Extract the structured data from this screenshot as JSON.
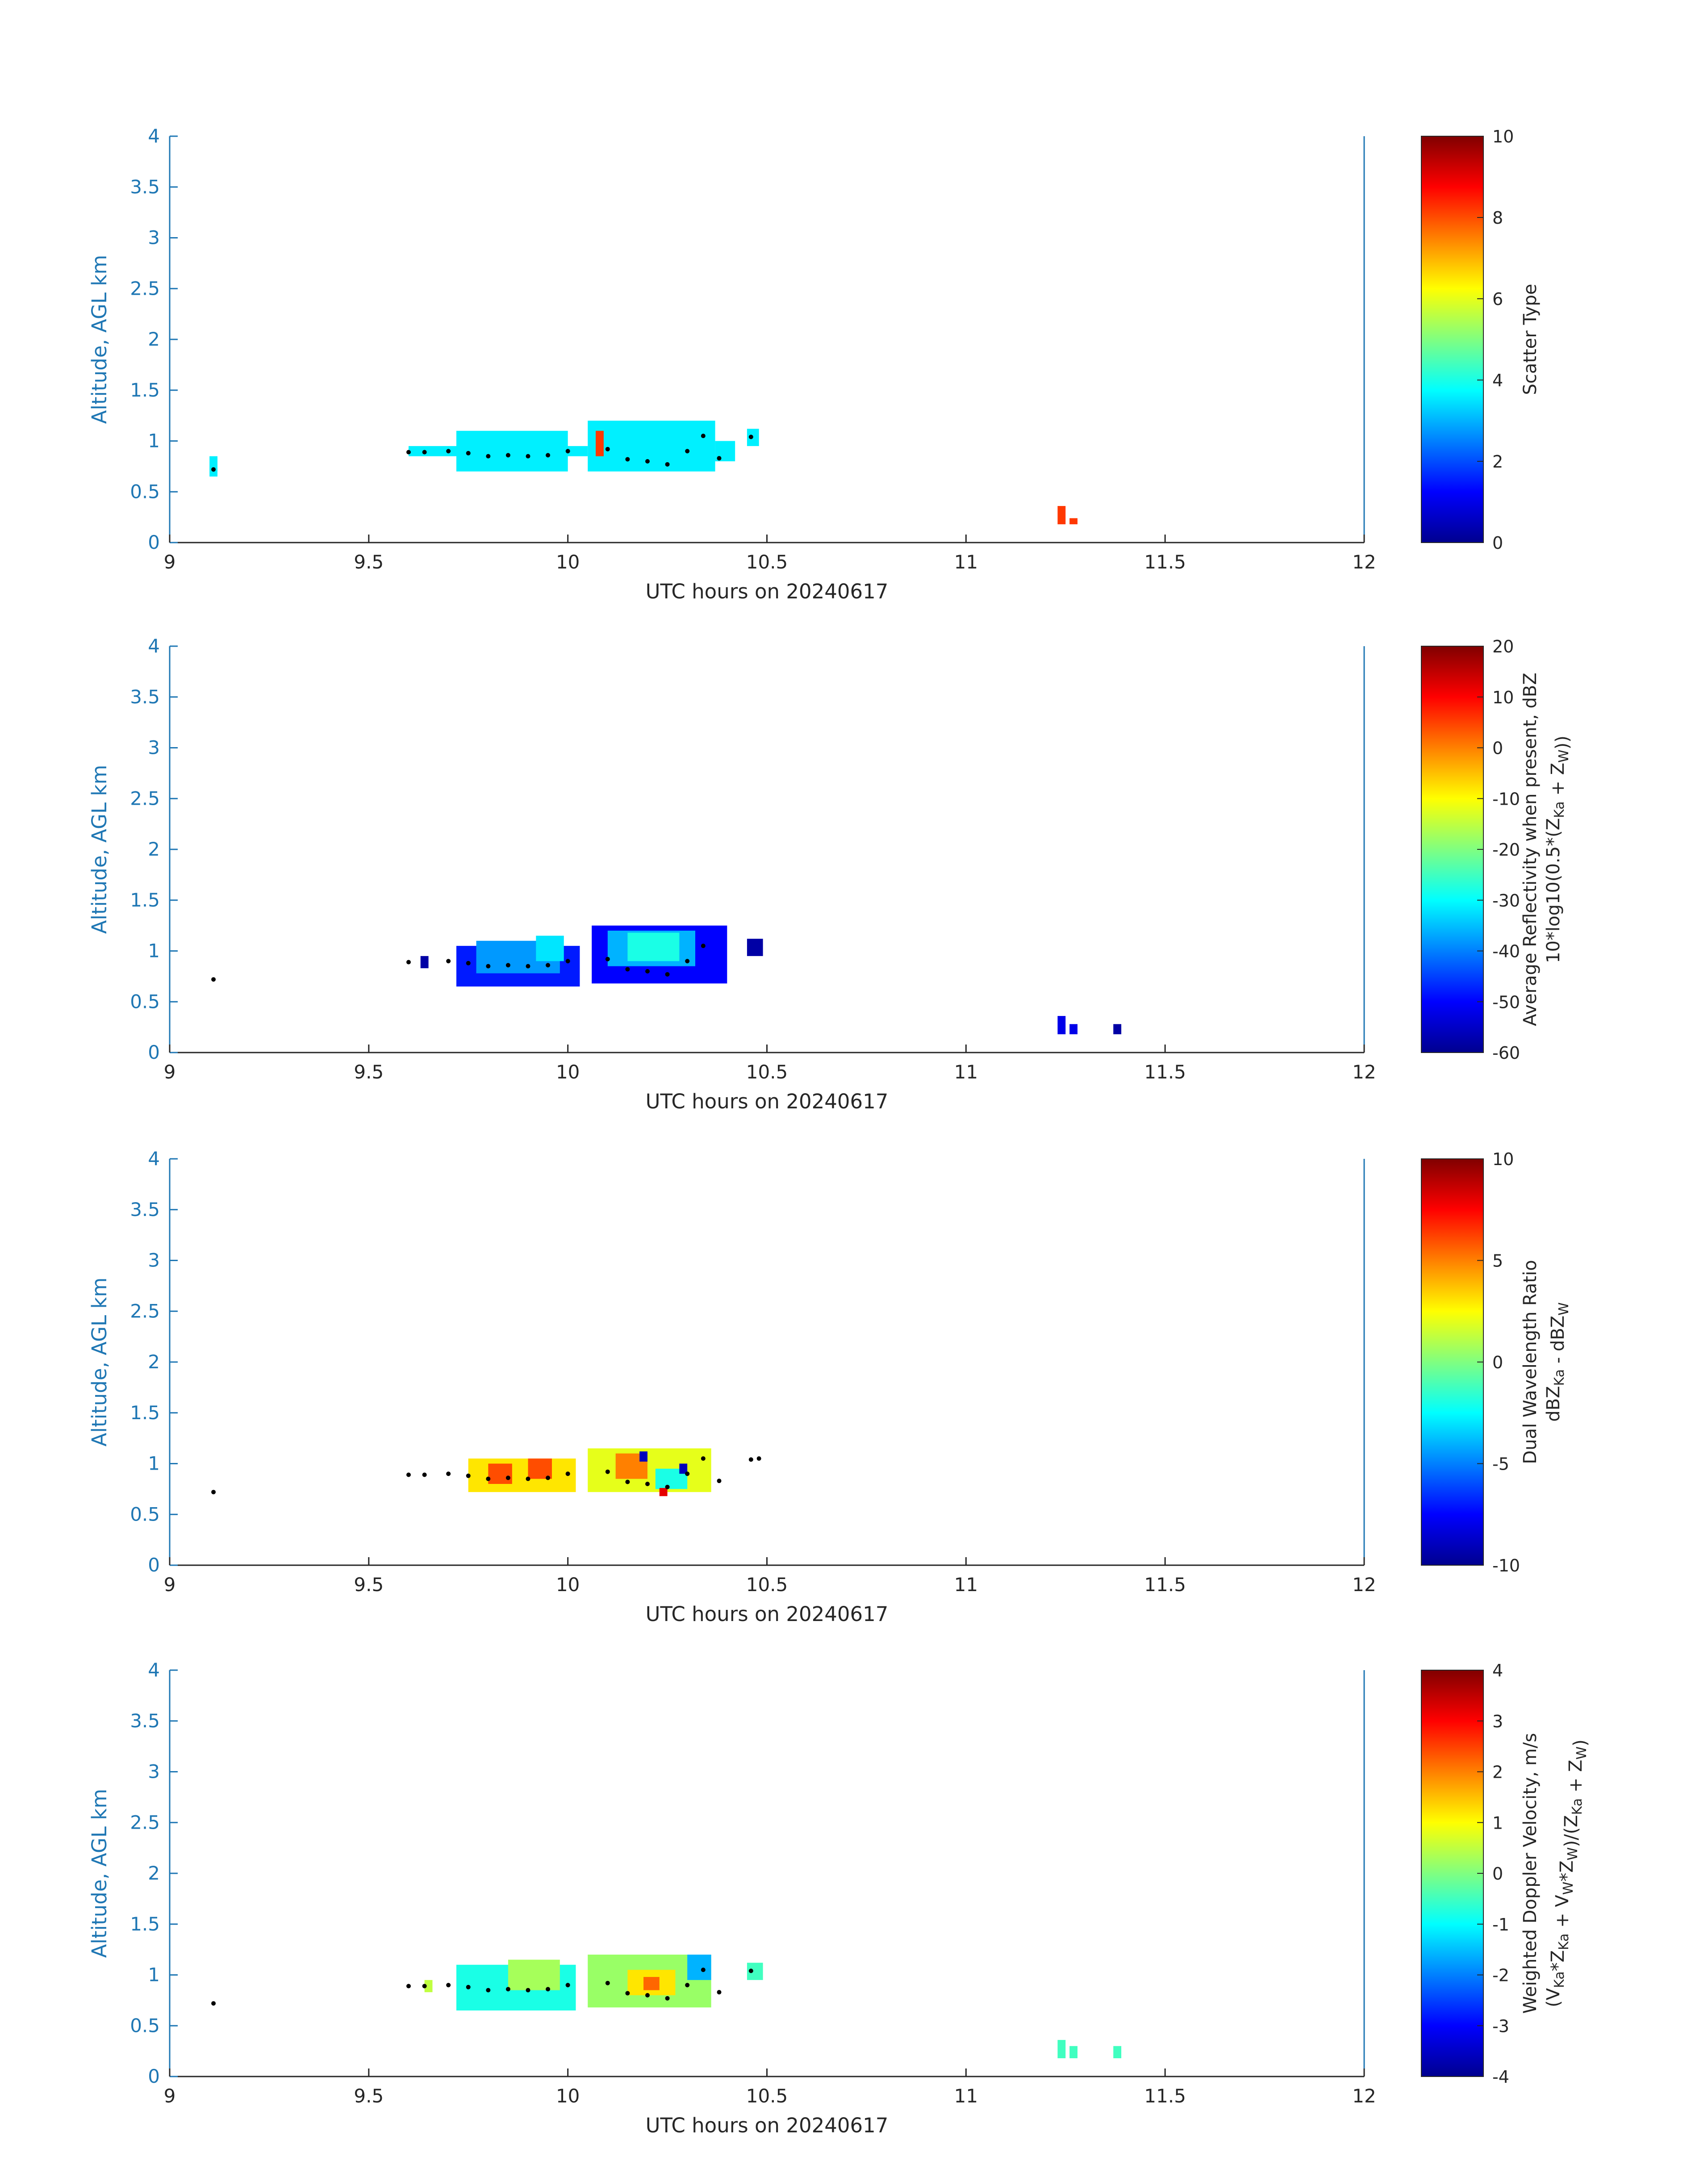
{
  "figure": {
    "jet_colormap": [
      "#00008f",
      "#0000ff",
      "#0080ff",
      "#00ffff",
      "#80ff80",
      "#ffff00",
      "#ff8000",
      "#ff0000",
      "#800000"
    ]
  },
  "chart_data": [
    {
      "type": "heatmap",
      "xlabel": "UTC hours on 20240617",
      "ylabel": "Altitude, AGL km",
      "xlim": [
        9,
        12
      ],
      "ylim": [
        0,
        4
      ],
      "xticks": [
        "9",
        "9.5",
        "10",
        "10.5",
        "11",
        "11.5",
        "12"
      ],
      "yticks": [
        "0",
        "0.5",
        "1",
        "1.5",
        "2",
        "2.5",
        "3",
        "3.5",
        "4"
      ],
      "colorbar": {
        "label_lines": [
          "Scatter Type"
        ],
        "clim": [
          0,
          10
        ],
        "ticks": [
          "0",
          "2",
          "4",
          "6",
          "8",
          "10"
        ]
      },
      "cells": [
        {
          "x0": 9.1,
          "x1": 9.12,
          "y0": 0.65,
          "y1": 0.85,
          "v": 3.6
        },
        {
          "x0": 9.6,
          "x1": 10.05,
          "y0": 0.85,
          "y1": 0.95,
          "v": 3.6
        },
        {
          "x0": 9.72,
          "x1": 10.0,
          "y0": 0.7,
          "y1": 1.1,
          "v": 3.6
        },
        {
          "x0": 10.05,
          "x1": 10.37,
          "y0": 0.7,
          "y1": 1.2,
          "v": 3.6
        },
        {
          "x0": 10.37,
          "x1": 10.42,
          "y0": 0.8,
          "y1": 1.0,
          "v": 3.6
        },
        {
          "x0": 10.45,
          "x1": 10.48,
          "y0": 0.95,
          "y1": 1.12,
          "v": 3.6
        },
        {
          "x0": 10.07,
          "x1": 10.09,
          "y0": 0.85,
          "y1": 1.1,
          "v": 8.2
        },
        {
          "x0": 11.23,
          "x1": 11.25,
          "y0": 0.18,
          "y1": 0.36,
          "v": 8.2
        },
        {
          "x0": 11.26,
          "x1": 11.28,
          "y0": 0.18,
          "y1": 0.24,
          "v": 8.2
        }
      ],
      "points": [
        {
          "x": 9.11,
          "y": 0.72
        },
        {
          "x": 9.6,
          "y": 0.89
        },
        {
          "x": 9.64,
          "y": 0.89
        },
        {
          "x": 9.7,
          "y": 0.9
        },
        {
          "x": 9.75,
          "y": 0.88
        },
        {
          "x": 9.8,
          "y": 0.85
        },
        {
          "x": 9.85,
          "y": 0.86
        },
        {
          "x": 9.9,
          "y": 0.85
        },
        {
          "x": 9.95,
          "y": 0.86
        },
        {
          "x": 10.0,
          "y": 0.9
        },
        {
          "x": 10.1,
          "y": 0.92
        },
        {
          "x": 10.15,
          "y": 0.82
        },
        {
          "x": 10.2,
          "y": 0.8
        },
        {
          "x": 10.25,
          "y": 0.77
        },
        {
          "x": 10.3,
          "y": 0.9
        },
        {
          "x": 10.34,
          "y": 1.05
        },
        {
          "x": 10.38,
          "y": 0.83
        },
        {
          "x": 10.46,
          "y": 1.04
        }
      ]
    },
    {
      "type": "heatmap",
      "xlabel": "UTC hours on 20240617",
      "ylabel": "Altitude, AGL km",
      "xlim": [
        9,
        12
      ],
      "ylim": [
        0,
        4
      ],
      "xticks": [
        "9",
        "9.5",
        "10",
        "10.5",
        "11",
        "11.5",
        "12"
      ],
      "yticks": [
        "0",
        "0.5",
        "1",
        "1.5",
        "2",
        "2.5",
        "3",
        "3.5",
        "4"
      ],
      "colorbar": {
        "label_lines": [
          "Average Reflectivity when present, dBZ",
          "10*log10(0.5*(Z_Ka + Z_W))"
        ],
        "clim": [
          -60,
          20
        ],
        "ticks": [
          "-60",
          "-50",
          "-40",
          "-30",
          "-20",
          "-10",
          "0",
          "10",
          "20"
        ]
      },
      "cells": [
        {
          "x0": 9.63,
          "x1": 9.65,
          "y0": 0.83,
          "y1": 0.95,
          "v": -58
        },
        {
          "x0": 9.72,
          "x1": 10.03,
          "y0": 0.65,
          "y1": 1.05,
          "v": -48
        },
        {
          "x0": 9.77,
          "x1": 9.98,
          "y0": 0.78,
          "y1": 1.1,
          "v": -38
        },
        {
          "x0": 9.92,
          "x1": 9.99,
          "y0": 0.9,
          "y1": 1.15,
          "v": -32
        },
        {
          "x0": 10.06,
          "x1": 10.4,
          "y0": 0.68,
          "y1": 1.25,
          "v": -50
        },
        {
          "x0": 10.1,
          "x1": 10.32,
          "y0": 0.85,
          "y1": 1.2,
          "v": -36
        },
        {
          "x0": 10.15,
          "x1": 10.28,
          "y0": 0.9,
          "y1": 1.18,
          "v": -28
        },
        {
          "x0": 10.45,
          "x1": 10.49,
          "y0": 0.95,
          "y1": 1.12,
          "v": -58
        },
        {
          "x0": 11.23,
          "x1": 11.25,
          "y0": 0.18,
          "y1": 0.36,
          "v": -52
        },
        {
          "x0": 11.26,
          "x1": 11.28,
          "y0": 0.18,
          "y1": 0.28,
          "v": -52
        },
        {
          "x0": 11.37,
          "x1": 11.39,
          "y0": 0.18,
          "y1": 0.28,
          "v": -58
        }
      ],
      "points": [
        {
          "x": 9.11,
          "y": 0.72
        },
        {
          "x": 9.6,
          "y": 0.89
        },
        {
          "x": 9.7,
          "y": 0.9
        },
        {
          "x": 9.75,
          "y": 0.88
        },
        {
          "x": 9.8,
          "y": 0.85
        },
        {
          "x": 9.85,
          "y": 0.86
        },
        {
          "x": 9.9,
          "y": 0.85
        },
        {
          "x": 9.95,
          "y": 0.86
        },
        {
          "x": 10.0,
          "y": 0.9
        },
        {
          "x": 10.1,
          "y": 0.92
        },
        {
          "x": 10.15,
          "y": 0.82
        },
        {
          "x": 10.2,
          "y": 0.8
        },
        {
          "x": 10.25,
          "y": 0.77
        },
        {
          "x": 10.3,
          "y": 0.9
        },
        {
          "x": 10.34,
          "y": 1.05
        }
      ]
    },
    {
      "type": "heatmap",
      "xlabel": "UTC hours on 20240617",
      "ylabel": "Altitude, AGL km",
      "xlim": [
        9,
        12
      ],
      "ylim": [
        0,
        4
      ],
      "xticks": [
        "9",
        "9.5",
        "10",
        "10.5",
        "11",
        "11.5",
        "12"
      ],
      "yticks": [
        "0",
        "0.5",
        "1",
        "1.5",
        "2",
        "2.5",
        "3",
        "3.5",
        "4"
      ],
      "colorbar": {
        "label_lines": [
          "Dual Wavelength Ratio",
          "dBZ_Ka - dBZ_W"
        ],
        "clim": [
          -10,
          10
        ],
        "ticks": [
          "-10",
          "-5",
          "0",
          "5",
          "10"
        ]
      },
      "cells": [
        {
          "x0": 9.75,
          "x1": 10.02,
          "y0": 0.72,
          "y1": 1.05,
          "v": 3
        },
        {
          "x0": 9.8,
          "x1": 9.86,
          "y0": 0.8,
          "y1": 1.0,
          "v": 6
        },
        {
          "x0": 9.9,
          "x1": 9.96,
          "y0": 0.85,
          "y1": 1.05,
          "v": 6
        },
        {
          "x0": 10.05,
          "x1": 10.36,
          "y0": 0.72,
          "y1": 1.15,
          "v": 2
        },
        {
          "x0": 10.12,
          "x1": 10.2,
          "y0": 0.85,
          "y1": 1.1,
          "v": 5
        },
        {
          "x0": 10.22,
          "x1": 10.3,
          "y0": 0.75,
          "y1": 0.95,
          "v": -2
        },
        {
          "x0": 10.18,
          "x1": 10.2,
          "y0": 1.02,
          "y1": 1.12,
          "v": -9
        },
        {
          "x0": 10.28,
          "x1": 10.3,
          "y0": 0.9,
          "y1": 1.0,
          "v": -9
        },
        {
          "x0": 10.23,
          "x1": 10.25,
          "y0": 0.68,
          "y1": 0.76,
          "v": 8
        }
      ],
      "points": [
        {
          "x": 9.11,
          "y": 0.72
        },
        {
          "x": 9.6,
          "y": 0.89
        },
        {
          "x": 9.64,
          "y": 0.89
        },
        {
          "x": 9.7,
          "y": 0.9
        },
        {
          "x": 9.75,
          "y": 0.88
        },
        {
          "x": 9.8,
          "y": 0.85
        },
        {
          "x": 9.85,
          "y": 0.86
        },
        {
          "x": 9.9,
          "y": 0.85
        },
        {
          "x": 9.95,
          "y": 0.86
        },
        {
          "x": 10.0,
          "y": 0.9
        },
        {
          "x": 10.1,
          "y": 0.92
        },
        {
          "x": 10.15,
          "y": 0.82
        },
        {
          "x": 10.2,
          "y": 0.8
        },
        {
          "x": 10.25,
          "y": 0.77
        },
        {
          "x": 10.3,
          "y": 0.9
        },
        {
          "x": 10.34,
          "y": 1.05
        },
        {
          "x": 10.38,
          "y": 0.83
        },
        {
          "x": 10.46,
          "y": 1.04
        },
        {
          "x": 10.48,
          "y": 1.05
        }
      ]
    },
    {
      "type": "heatmap",
      "xlabel": "UTC hours on 20240617",
      "ylabel": "Altitude, AGL km",
      "xlim": [
        9,
        12
      ],
      "ylim": [
        0,
        4
      ],
      "xticks": [
        "9",
        "9.5",
        "10",
        "10.5",
        "11",
        "11.5",
        "12"
      ],
      "yticks": [
        "0",
        "0.5",
        "1",
        "1.5",
        "2",
        "2.5",
        "3",
        "3.5",
        "4"
      ],
      "colorbar": {
        "label_lines": [
          "Weighted Doppler Velocity, m/s",
          "(V_Ka*Z_Ka + V_W*Z_W)/(Z_Ka + Z_W)"
        ],
        "clim": [
          -4,
          4
        ],
        "ticks": [
          "-4",
          "-3",
          "-2",
          "-1",
          "0",
          "1",
          "2",
          "3",
          "4"
        ]
      },
      "cells": [
        {
          "x0": 9.64,
          "x1": 9.66,
          "y0": 0.83,
          "y1": 0.95,
          "v": 0.5
        },
        {
          "x0": 9.72,
          "x1": 10.02,
          "y0": 0.65,
          "y1": 1.1,
          "v": -0.8
        },
        {
          "x0": 9.85,
          "x1": 9.98,
          "y0": 0.85,
          "y1": 1.15,
          "v": 0.3
        },
        {
          "x0": 10.05,
          "x1": 10.36,
          "y0": 0.68,
          "y1": 1.2,
          "v": 0.2
        },
        {
          "x0": 10.15,
          "x1": 10.27,
          "y0": 0.8,
          "y1": 1.05,
          "v": 1.2
        },
        {
          "x0": 10.19,
          "x1": 10.23,
          "y0": 0.85,
          "y1": 0.98,
          "v": 2.2
        },
        {
          "x0": 10.3,
          "x1": 10.36,
          "y0": 0.95,
          "y1": 1.2,
          "v": -1.6
        },
        {
          "x0": 10.45,
          "x1": 10.49,
          "y0": 0.95,
          "y1": 1.12,
          "v": -0.5
        },
        {
          "x0": 11.23,
          "x1": 11.25,
          "y0": 0.18,
          "y1": 0.36,
          "v": -0.5
        },
        {
          "x0": 11.26,
          "x1": 11.28,
          "y0": 0.18,
          "y1": 0.3,
          "v": -0.5
        },
        {
          "x0": 11.37,
          "x1": 11.39,
          "y0": 0.18,
          "y1": 0.3,
          "v": -0.5
        }
      ],
      "points": [
        {
          "x": 9.11,
          "y": 0.72
        },
        {
          "x": 9.6,
          "y": 0.89
        },
        {
          "x": 9.64,
          "y": 0.89
        },
        {
          "x": 9.7,
          "y": 0.9
        },
        {
          "x": 9.75,
          "y": 0.88
        },
        {
          "x": 9.8,
          "y": 0.85
        },
        {
          "x": 9.85,
          "y": 0.86
        },
        {
          "x": 9.9,
          "y": 0.85
        },
        {
          "x": 9.95,
          "y": 0.86
        },
        {
          "x": 10.0,
          "y": 0.9
        },
        {
          "x": 10.1,
          "y": 0.92
        },
        {
          "x": 10.15,
          "y": 0.82
        },
        {
          "x": 10.2,
          "y": 0.8
        },
        {
          "x": 10.25,
          "y": 0.77
        },
        {
          "x": 10.3,
          "y": 0.9
        },
        {
          "x": 10.34,
          "y": 1.05
        },
        {
          "x": 10.38,
          "y": 0.83
        },
        {
          "x": 10.46,
          "y": 1.04
        }
      ]
    }
  ]
}
